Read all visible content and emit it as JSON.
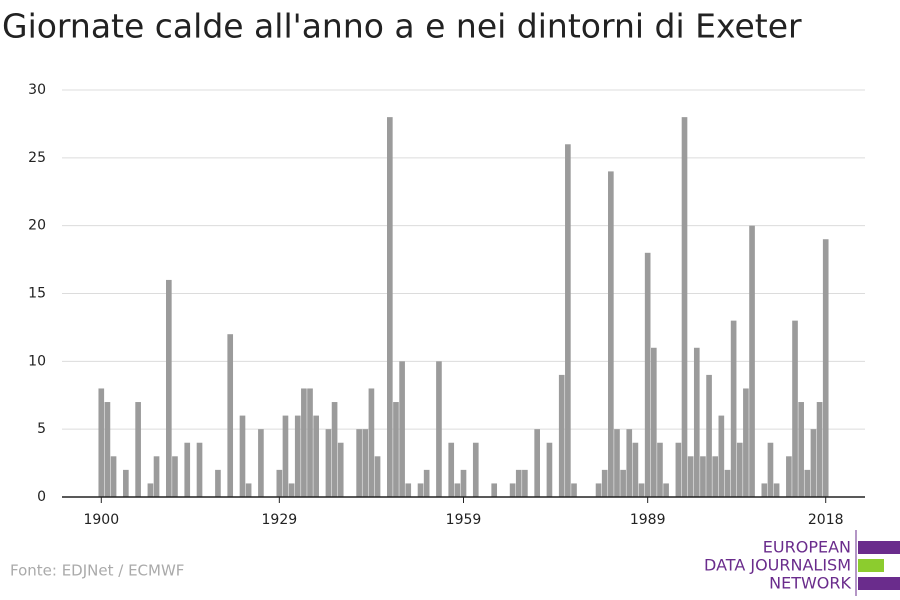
{
  "chart_data": {
    "type": "bar",
    "title": "Giornate calde all'anno a e nei dintorni di Exeter",
    "source": "Fonte: EDJNet / ECMWF",
    "logo": [
      "EUROPEAN",
      "DATA JOURNALISM",
      "NETWORK"
    ],
    "color": "#9b9b9b",
    "x": [
      1900,
      1901,
      1902,
      1903,
      1904,
      1905,
      1906,
      1907,
      1908,
      1909,
      1910,
      1911,
      1912,
      1913,
      1914,
      1915,
      1916,
      1917,
      1918,
      1919,
      1920,
      1921,
      1922,
      1923,
      1924,
      1925,
      1926,
      1927,
      1928,
      1929,
      1930,
      1931,
      1932,
      1933,
      1934,
      1935,
      1936,
      1937,
      1938,
      1939,
      1940,
      1941,
      1942,
      1943,
      1944,
      1945,
      1946,
      1947,
      1948,
      1949,
      1950,
      1951,
      1952,
      1953,
      1954,
      1955,
      1956,
      1957,
      1958,
      1959,
      1960,
      1961,
      1962,
      1963,
      1964,
      1965,
      1966,
      1967,
      1968,
      1969,
      1970,
      1971,
      1972,
      1973,
      1974,
      1975,
      1976,
      1977,
      1978,
      1979,
      1980,
      1981,
      1982,
      1983,
      1984,
      1985,
      1986,
      1987,
      1988,
      1989,
      1990,
      1991,
      1992,
      1993,
      1994,
      1995,
      1996,
      1997,
      1998,
      1999,
      2000,
      2001,
      2002,
      2003,
      2004,
      2005,
      2006,
      2007,
      2008,
      2009,
      2010,
      2011,
      2012,
      2013,
      2014,
      2015,
      2016,
      2017,
      2018
    ],
    "values": [
      8,
      7,
      3,
      0,
      2,
      0,
      7,
      0,
      1,
      3,
      0,
      16,
      3,
      0,
      4,
      0,
      4,
      0,
      0,
      2,
      0,
      12,
      0,
      6,
      1,
      0,
      5,
      0,
      0,
      2,
      6,
      1,
      6,
      8,
      8,
      6,
      0,
      5,
      7,
      4,
      0,
      0,
      5,
      5,
      8,
      3,
      0,
      28,
      7,
      10,
      1,
      0,
      1,
      2,
      0,
      10,
      0,
      4,
      1,
      2,
      0,
      4,
      0,
      0,
      1,
      0,
      0,
      1,
      2,
      2,
      0,
      5,
      0,
      4,
      0,
      9,
      26,
      1,
      0,
      0,
      0,
      1,
      2,
      24,
      5,
      2,
      5,
      4,
      1,
      18,
      11,
      4,
      1,
      0,
      4,
      28,
      3,
      11,
      3,
      9,
      3,
      6,
      2,
      13,
      4,
      8,
      20,
      0,
      1,
      4,
      1,
      0,
      3,
      13,
      7,
      2,
      5,
      7,
      19
    ],
    "xlim": [
      1893.6,
      2024.4
    ],
    "xticks": [
      1900,
      1929,
      1959,
      1989,
      2018
    ],
    "ylim": [
      0,
      30
    ],
    "yticks": [
      0,
      5,
      10,
      15,
      20,
      25,
      30
    ],
    "grid": true
  }
}
